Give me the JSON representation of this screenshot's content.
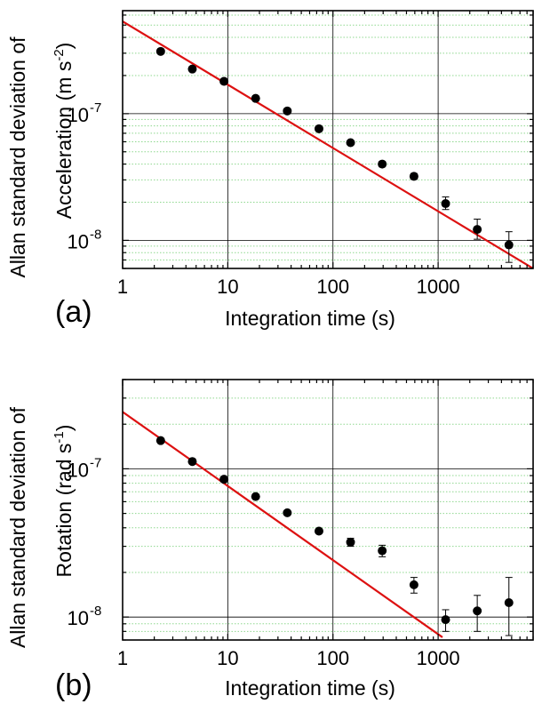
{
  "chart_data": [
    {
      "type": "scatter",
      "panel_label": "(a)",
      "xlabel": "Integration time (s)",
      "ylabel_line1": "Allan standard deviation of",
      "ylabel_line2": "Acceleration (m s",
      "ylabel_sup": "-2",
      "ylabel_end": ")",
      "xscale": "log",
      "yscale": "log",
      "xlim": [
        1,
        8000
      ],
      "ylim": [
        6e-09,
        6.5e-07
      ],
      "x_ticks": [
        1,
        10,
        100,
        1000
      ],
      "x_tick_labels": [
        "1",
        "10",
        "100",
        "1000"
      ],
      "y_ticks": [
        1e-08,
        1e-07
      ],
      "y_tick_labels": [
        {
          "base": "10",
          "exp": "-8"
        },
        {
          "base": "10",
          "exp": "-7"
        }
      ],
      "grid": "major black, minor green dotted",
      "series": [
        {
          "x": [
            2.3,
            4.6,
            9.2,
            18.4,
            36.8,
            73.6,
            147,
            294,
            589,
            1178,
            2355,
            4710
          ],
          "y": [
            3.1e-07,
            2.25e-07,
            1.8e-07,
            1.32e-07,
            1.05e-07,
            7.6e-08,
            5.9e-08,
            4e-08,
            3.2e-08,
            1.95e-08,
            1.22e-08,
            9.2e-09
          ],
          "err_low": [
            0,
            0,
            0,
            0,
            0,
            0,
            0,
            1.8e-09,
            1.7e-09,
            2e-09,
            2e-09,
            2.5e-09
          ],
          "err_high": [
            0,
            0,
            0,
            0,
            0,
            0,
            0,
            1.8e-09,
            1.7e-09,
            2.5e-09,
            2.5e-09,
            2.5e-09
          ]
        }
      ],
      "fit_line": {
        "x": [
          1,
          8000
        ],
        "y": [
          5.35e-07,
          6e-09
        ],
        "color": "#dd1111"
      }
    },
    {
      "type": "scatter",
      "panel_label": "(b)",
      "xlabel": "Integration time (s)",
      "ylabel_line1": "Allan standard deviation of",
      "ylabel_line2": "Rotation (rad s",
      "ylabel_sup": "-1",
      "ylabel_end": ")",
      "xscale": "log",
      "yscale": "log",
      "xlim": [
        1,
        8000
      ],
      "ylim": [
        7e-09,
        4e-07
      ],
      "x_ticks": [
        1,
        10,
        100,
        1000
      ],
      "x_tick_labels": [
        "1",
        "10",
        "100",
        "1000"
      ],
      "y_ticks": [
        1e-08,
        1e-07
      ],
      "y_tick_labels": [
        {
          "base": "10",
          "exp": "-8"
        },
        {
          "base": "10",
          "exp": "-7"
        }
      ],
      "grid": "major black, minor green dotted",
      "series": [
        {
          "x": [
            2.3,
            4.6,
            9.2,
            18.4,
            36.8,
            73.6,
            147,
            294,
            589,
            1178,
            2355,
            4710
          ],
          "y": [
            1.55e-07,
            1.12e-07,
            8.5e-08,
            6.5e-08,
            5.05e-08,
            3.8e-08,
            3.2e-08,
            2.8e-08,
            1.65e-08,
            9.6e-09,
            1.1e-08,
            1.25e-08
          ],
          "err_low": [
            0,
            0,
            0,
            0,
            0,
            0,
            2e-09,
            2.5e-09,
            2e-09,
            1.6e-09,
            3e-09,
            5e-09
          ],
          "err_high": [
            0,
            0,
            0,
            0,
            0,
            0,
            2e-09,
            2.5e-09,
            2e-09,
            1.6e-09,
            3e-09,
            6e-09
          ]
        }
      ],
      "fit_line": {
        "x": [
          1,
          1100
        ],
        "y": [
          2.42e-07,
          7.3e-09
        ],
        "color": "#dd1111"
      }
    }
  ]
}
